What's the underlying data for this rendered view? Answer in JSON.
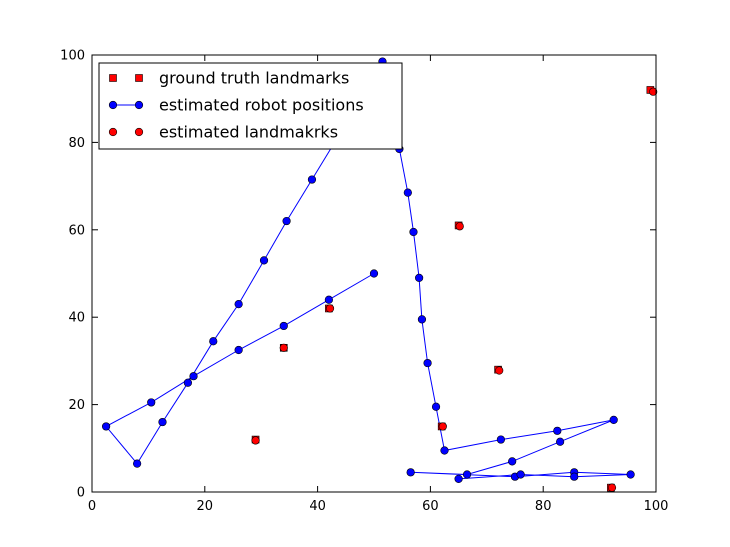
{
  "chart_data": {
    "type": "scatter",
    "xlim": [
      0,
      100
    ],
    "ylim": [
      0,
      100
    ],
    "x_ticks": [
      0,
      20,
      40,
      60,
      80,
      100
    ],
    "y_ticks": [
      0,
      20,
      40,
      60,
      80,
      100
    ],
    "grid": false,
    "legend_placement": "top-left",
    "series": [
      {
        "name": "ground truth landmarks",
        "marker": "square",
        "line": false,
        "color": "#ff0000",
        "points": [
          [
            29,
            12
          ],
          [
            34,
            33
          ],
          [
            42,
            42
          ],
          [
            62,
            15
          ],
          [
            65,
            61
          ],
          [
            72,
            28
          ],
          [
            92,
            1
          ],
          [
            99,
            92
          ]
        ]
      },
      {
        "name": "estimated robot positions",
        "marker": "circle",
        "line": true,
        "color": "#0000ff",
        "points": [
          [
            50,
            50
          ],
          [
            42,
            44
          ],
          [
            34,
            38
          ],
          [
            26,
            32.5
          ],
          [
            18,
            26.5
          ],
          [
            10.5,
            20.5
          ],
          [
            2.5,
            15
          ],
          [
            8,
            6.5
          ],
          [
            12.5,
            16
          ],
          [
            17,
            25
          ],
          [
            21.5,
            34.5
          ],
          [
            26,
            43
          ],
          [
            30.5,
            53
          ],
          [
            34.5,
            62
          ],
          [
            39,
            71.5
          ],
          [
            43.5,
            81
          ],
          [
            48,
            90.5
          ],
          [
            51.5,
            98.5
          ],
          [
            54.5,
            78.5
          ],
          [
            56,
            68.5
          ],
          [
            57,
            59.5
          ],
          [
            58,
            49
          ],
          [
            58.5,
            39.5
          ],
          [
            59.5,
            29.5
          ],
          [
            61,
            19.5
          ],
          [
            62.5,
            9.5
          ],
          [
            72.5,
            12
          ],
          [
            82.5,
            14
          ],
          [
            92.5,
            16.5
          ],
          [
            83,
            11.5
          ],
          [
            74.5,
            7
          ],
          [
            66.5,
            4
          ],
          [
            56.5,
            4.5
          ],
          [
            75,
            3.5
          ],
          [
            85.5,
            4.5
          ],
          [
            95.5,
            4
          ],
          [
            85.5,
            3.5
          ],
          [
            76,
            4
          ],
          [
            65,
            3
          ]
        ]
      },
      {
        "name": "estimated landmakrks",
        "marker": "circle",
        "line": false,
        "color": "#ff0000",
        "points": [
          [
            29,
            11.8
          ],
          [
            34,
            33
          ],
          [
            42.2,
            42
          ],
          [
            62.2,
            15
          ],
          [
            65.2,
            60.8
          ],
          [
            72.2,
            27.8
          ],
          [
            92.2,
            1
          ],
          [
            99.5,
            91.6
          ]
        ]
      }
    ]
  }
}
